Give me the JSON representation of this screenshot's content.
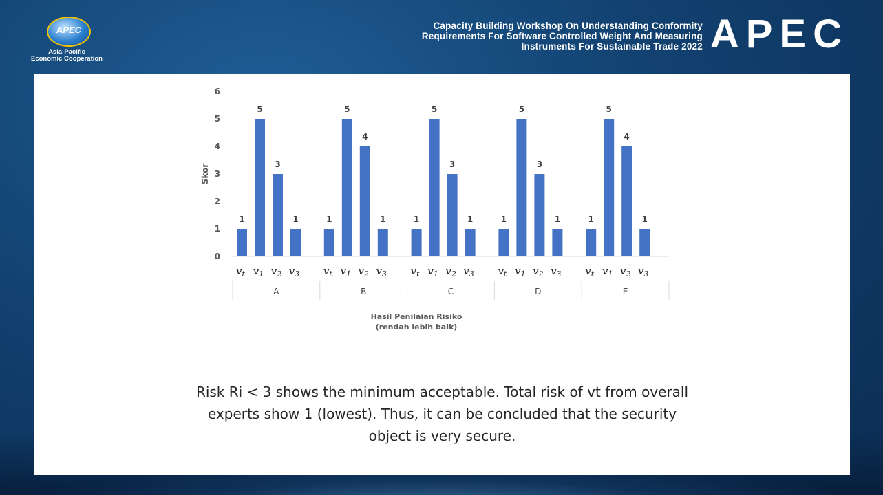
{
  "header": {
    "logo_text": "APEC",
    "logo_subtitle_1": "Asia-Pacific",
    "logo_subtitle_2": "Economic Cooperation",
    "title_lines": [
      "Capacity Building Workshop On Understanding Conformity",
      "Requirements For Software Controlled Weight And Measuring",
      "Instruments For Sustainable Trade 2022"
    ],
    "brand": "APEC"
  },
  "chart_data": {
    "type": "bar",
    "ylabel": "Skor",
    "xlabel_lines": [
      "Hasil Penilaian Risiko",
      "(rendah lebih baik)"
    ],
    "ylim": [
      0,
      6
    ],
    "yticks": [
      "0",
      "1",
      "2",
      "3",
      "4",
      "5",
      "6"
    ],
    "bar_color": "#4472c4",
    "groups": [
      {
        "label": "A",
        "bars": [
          {
            "main": "v",
            "sub": "t",
            "value": 1
          },
          {
            "main": "v",
            "sub": "1",
            "value": 5
          },
          {
            "main": "v",
            "sub": "2",
            "value": 3
          },
          {
            "main": "v",
            "sub": "3",
            "value": 1
          }
        ]
      },
      {
        "label": "B",
        "bars": [
          {
            "main": "v",
            "sub": "t",
            "value": 1
          },
          {
            "main": "v",
            "sub": "1",
            "value": 5
          },
          {
            "main": "v",
            "sub": "2",
            "value": 4
          },
          {
            "main": "v",
            "sub": "3",
            "value": 1
          }
        ]
      },
      {
        "label": "C",
        "bars": [
          {
            "main": "v",
            "sub": "t",
            "value": 1
          },
          {
            "main": "v",
            "sub": "1",
            "value": 5
          },
          {
            "main": "v",
            "sub": "2",
            "value": 3
          },
          {
            "main": "v",
            "sub": "3",
            "value": 1
          }
        ]
      },
      {
        "label": "D",
        "bars": [
          {
            "main": "v",
            "sub": "t",
            "value": 1
          },
          {
            "main": "v",
            "sub": "1",
            "value": 5
          },
          {
            "main": "v",
            "sub": "2",
            "value": 3
          },
          {
            "main": "v",
            "sub": "3",
            "value": 1
          }
        ]
      },
      {
        "label": "E",
        "bars": [
          {
            "main": "v",
            "sub": "t",
            "value": 1
          },
          {
            "main": "v",
            "sub": "1",
            "value": 5
          },
          {
            "main": "v",
            "sub": "2",
            "value": 4
          },
          {
            "main": "v",
            "sub": "3",
            "value": 1
          }
        ]
      }
    ]
  },
  "caption_lines": [
    "Risk Ri < 3 shows the minimum acceptable. Total risk of vt from overall",
    "experts show 1 (lowest). Thus, it can be concluded that the security",
    "object is very secure."
  ]
}
